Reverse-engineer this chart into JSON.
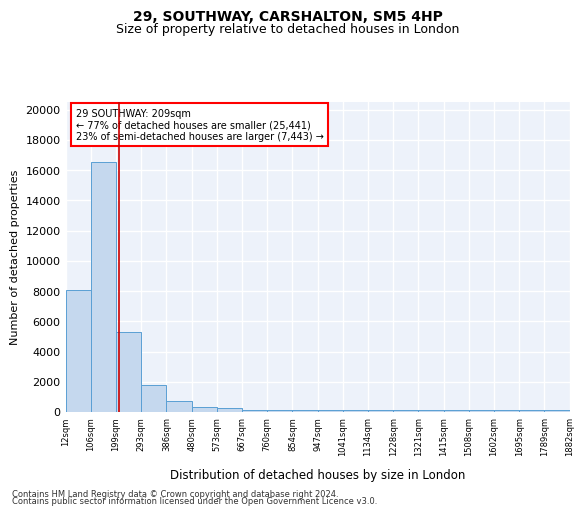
{
  "title1": "29, SOUTHWAY, CARSHALTON, SM5 4HP",
  "title2": "Size of property relative to detached houses in London",
  "xlabel": "Distribution of detached houses by size in London",
  "ylabel": "Number of detached properties",
  "bin_edges": [
    12,
    106,
    199,
    293,
    386,
    480,
    573,
    667,
    760,
    854,
    947,
    1041,
    1134,
    1228,
    1321,
    1415,
    1508,
    1602,
    1695,
    1789,
    1882
  ],
  "bar_heights": [
    8100,
    16500,
    5300,
    1800,
    700,
    350,
    250,
    150,
    150,
    100,
    100,
    100,
    100,
    100,
    100,
    100,
    100,
    100,
    100,
    100
  ],
  "bar_color": "#c5d8ee",
  "bar_edge_color": "#5a9fd4",
  "vline_x": 209,
  "vline_color": "#cc0000",
  "ylim": [
    0,
    20500
  ],
  "yticks": [
    0,
    2000,
    4000,
    6000,
    8000,
    10000,
    12000,
    14000,
    16000,
    18000,
    20000
  ],
  "annotation_text": "29 SOUTHWAY: 209sqm\n← 77% of detached houses are smaller (25,441)\n23% of semi-detached houses are larger (7,443) →",
  "footer1": "Contains HM Land Registry data © Crown copyright and database right 2024.",
  "footer2": "Contains public sector information licensed under the Open Government Licence v3.0.",
  "background_color": "#edf2fa",
  "grid_color": "#ffffff",
  "title1_fontsize": 10,
  "title2_fontsize": 9,
  "tick_labels": [
    "12sqm",
    "106sqm",
    "199sqm",
    "293sqm",
    "386sqm",
    "480sqm",
    "573sqm",
    "667sqm",
    "760sqm",
    "854sqm",
    "947sqm",
    "1041sqm",
    "1134sqm",
    "1228sqm",
    "1321sqm",
    "1415sqm",
    "1508sqm",
    "1602sqm",
    "1695sqm",
    "1789sqm",
    "1882sqm"
  ]
}
